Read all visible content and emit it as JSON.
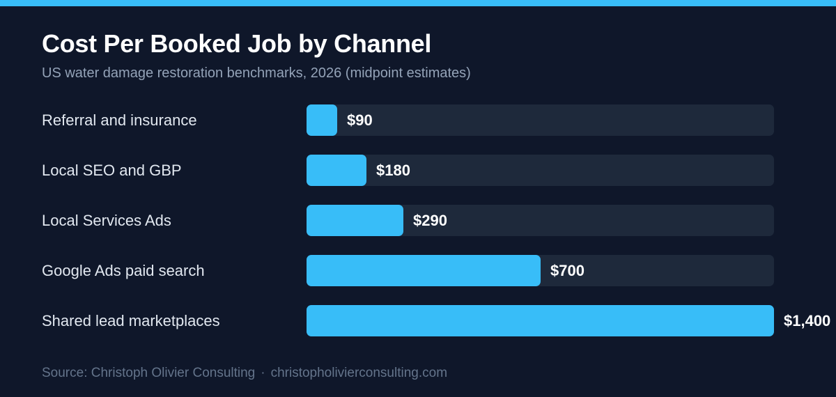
{
  "header": {
    "title": "Cost Per Booked Job by Channel",
    "subtitle": "US water damage restoration benchmarks, 2026 (midpoint estimates)"
  },
  "colors": {
    "background": "#0f172a",
    "accent": "#38bdf8",
    "track": "#1e293b"
  },
  "chart_data": {
    "type": "bar",
    "orientation": "horizontal",
    "title": "Cost Per Booked Job by Channel",
    "subtitle": "US water damage restoration benchmarks, 2026 (midpoint estimates)",
    "categories": [
      "Referral and insurance",
      "Local SEO and GBP",
      "Local Services Ads",
      "Google Ads paid search",
      "Shared lead marketplaces"
    ],
    "values": [
      90,
      180,
      290,
      700,
      1400
    ],
    "value_labels": [
      "$90",
      "$180",
      "$290",
      "$700",
      "$1,400"
    ],
    "xlim": [
      0,
      1400
    ],
    "grid": false,
    "legend": "none"
  },
  "footer": {
    "source": "Source: Christoph Olivier Consulting",
    "separator": "·",
    "website": "christopholivierconsulting.com"
  }
}
